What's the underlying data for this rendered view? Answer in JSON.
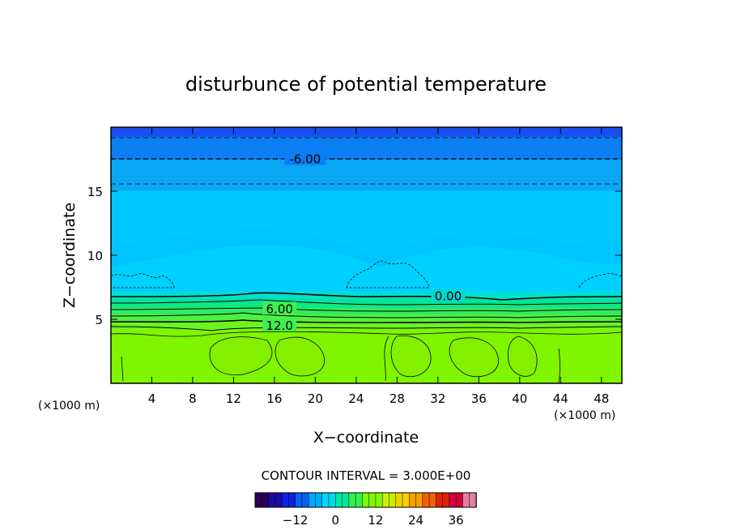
{
  "chart_data": {
    "type": "heatmap",
    "title": "disturbunce of potential temperature",
    "xlabel": "X−coordinate",
    "ylabel": "Z−coordinate",
    "x_unit_left": "(×1000 m)",
    "x_unit_right": "(×1000 m)",
    "xlim": [
      0,
      50
    ],
    "ylim": [
      0,
      20
    ],
    "x_ticks": [
      "4",
      "8",
      "12",
      "16",
      "20",
      "24",
      "28",
      "32",
      "36",
      "40",
      "44",
      "48"
    ],
    "x_tick_values": [
      4,
      8,
      12,
      16,
      20,
      24,
      28,
      32,
      36,
      40,
      44,
      48
    ],
    "y_ticks": [
      "5",
      "10",
      "15"
    ],
    "y_tick_values": [
      5,
      10,
      15
    ],
    "contour_labels": [
      {
        "text": "-6.00",
        "x": 19,
        "z": 17.5
      },
      {
        "text": "0.00",
        "x": 33,
        "z": 6.8
      },
      {
        "text": "6.00",
        "x": 16.5,
        "z": 5.8
      },
      {
        "text": "12.0",
        "x": 16.5,
        "z": 4.5
      }
    ],
    "contour_interval_text": "CONTOUR INTERVAL = 3.000E+00",
    "colorbar": {
      "ticks": [
        "−12",
        "0",
        "12",
        "24",
        "36"
      ],
      "tick_values": [
        -12,
        0,
        12,
        24,
        36
      ],
      "range": [
        -24,
        42
      ]
    },
    "colors": {
      "top": "#1a4ef0",
      "upper": "#0aa7f5",
      "middle": "#00c8ff",
      "inversion": "#00d8b0",
      "low": "#7ff500"
    }
  }
}
